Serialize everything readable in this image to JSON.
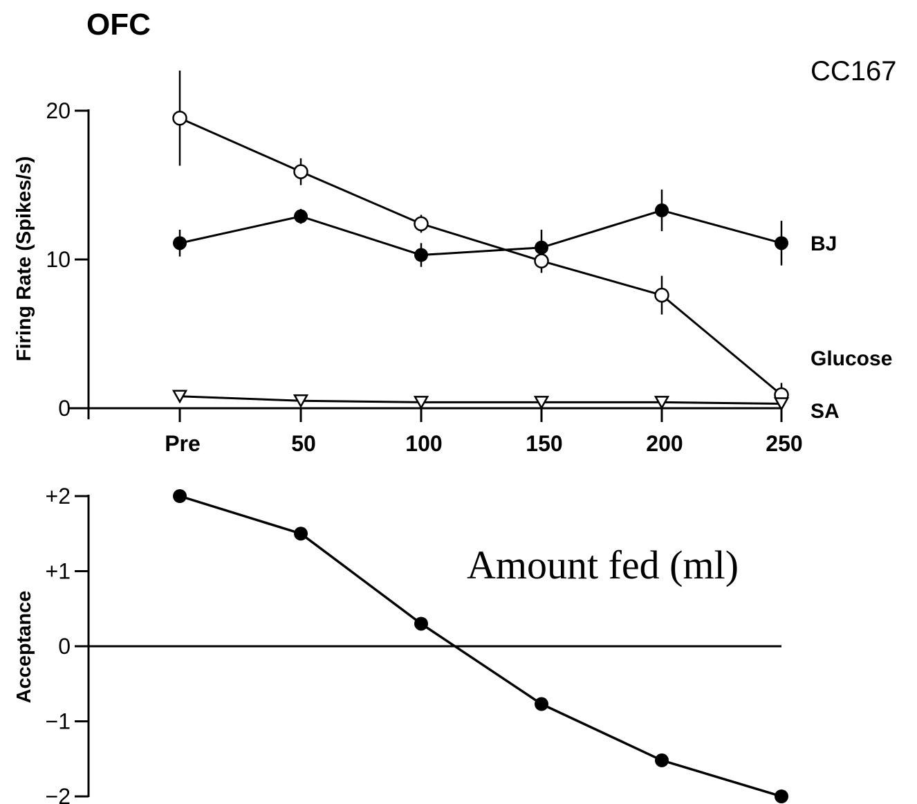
{
  "figure": {
    "region_label": "OFC",
    "cell_label": "CC167",
    "xlabel_overlay": "Amount fed (ml)"
  },
  "chart_data": [
    {
      "type": "line",
      "title": "",
      "xlabel": "Amount fed (ml)",
      "ylabel": "Firing Rate (Spikes/s)",
      "categories": [
        "Pre",
        "50",
        "100",
        "150",
        "200",
        "250"
      ],
      "ylim": [
        0,
        22
      ],
      "yticks": [
        "0",
        "10",
        "20"
      ],
      "grid": false,
      "legend": "direct labels at right",
      "series": [
        {
          "name": "BJ",
          "marker": "filled-circle",
          "values": [
            11.1,
            12.9,
            10.3,
            10.8,
            13.3,
            11.1
          ],
          "errors": [
            0.9,
            0.5,
            0.8,
            1.2,
            1.4,
            1.5
          ]
        },
        {
          "name": "Glucose",
          "marker": "open-circle",
          "values": [
            19.5,
            15.9,
            12.4,
            9.9,
            7.6,
            0.9
          ],
          "errors": [
            3.2,
            0.9,
            0.6,
            0.8,
            1.3,
            0.8
          ]
        },
        {
          "name": "SA",
          "marker": "open-triangle-down",
          "values": [
            0.8,
            0.5,
            0.4,
            0.4,
            0.4,
            0.3
          ],
          "errors": [
            0.2,
            0.1,
            0.1,
            0.1,
            0.1,
            0.1
          ]
        }
      ]
    },
    {
      "type": "line",
      "title": "",
      "xlabel": "",
      "ylabel": "Acceptance",
      "categories": [
        "Pre",
        "50",
        "100",
        "150",
        "200",
        "250"
      ],
      "ylim": [
        -2,
        2
      ],
      "yticks": [
        "−2",
        "−1",
        "0",
        "+1",
        "+2"
      ],
      "grid": false,
      "series": [
        {
          "marker": "filled-circle",
          "values": [
            2.0,
            1.5,
            0.3,
            -0.77,
            -1.52,
            -2.0
          ]
        }
      ]
    }
  ]
}
